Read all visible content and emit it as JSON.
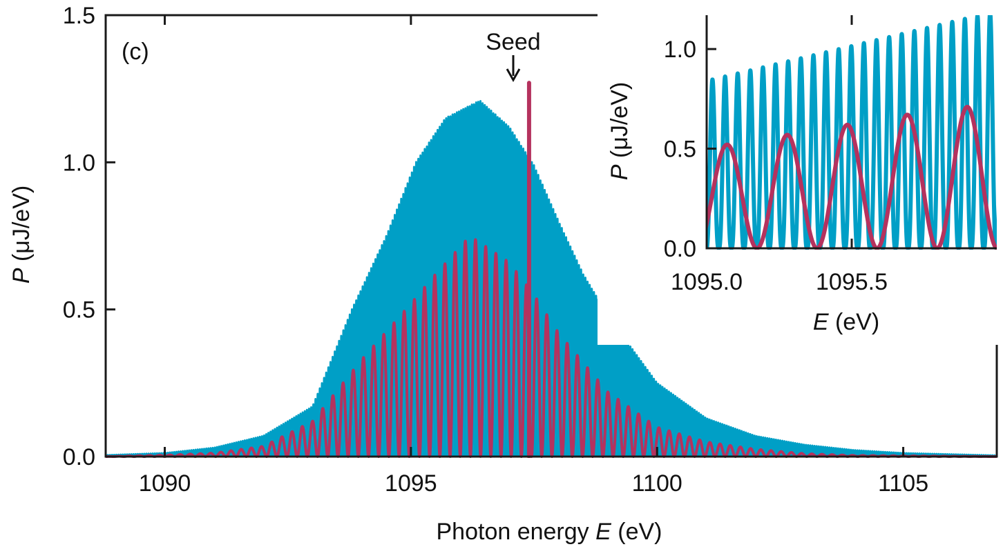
{
  "chart_data": [
    {
      "type": "line",
      "panel_label": "(c)",
      "xlabel_prefix": "Photon energy ",
      "xlabel_var": "E",
      "xlabel_unit": " (eV)",
      "ylabel_var": "P",
      "ylabel_unit": " (μJ/eV)",
      "xlim": [
        1088.8,
        1106.9
      ],
      "ylim": [
        0,
        1.5
      ],
      "xticks": [
        1090,
        1095,
        1100,
        1105
      ],
      "xtick_labels": [
        "1090",
        "1095",
        "1100",
        "1105"
      ],
      "yticks": [
        0,
        0.5,
        1.0,
        1.5
      ],
      "ytick_labels": [
        "0.0",
        "0.5",
        "1.0",
        "1.5"
      ],
      "grid": false,
      "annotation": {
        "text": "Seed",
        "x": 1097.4,
        "arrow": true
      },
      "series": [
        {
          "color": "#009fc6",
          "description_envelope_x": [
            1088.8,
            1090,
            1091,
            1092,
            1093,
            1093.8,
            1094.5,
            1095.1,
            1095.7,
            1096.4,
            1097,
            1097.5,
            1098,
            1098.5,
            1099,
            1100,
            1101,
            1102,
            1103,
            1104,
            1105,
            1106.9
          ],
          "envelope_y": [
            0.005,
            0.012,
            0.03,
            0.07,
            0.17,
            0.5,
            0.75,
            1.0,
            1.15,
            1.21,
            1.12,
            0.99,
            0.8,
            0.62,
            0.48,
            0.25,
            0.13,
            0.07,
            0.04,
            0.022,
            0.012,
            0.004
          ],
          "fringe_period_eV": 0.0435,
          "fringe_phase_eV": 1095.02
        },
        {
          "color": "#b5325e",
          "envelope_x": [
            1088.8,
            1090,
            1091,
            1092,
            1093,
            1094,
            1095,
            1095.5,
            1096.2,
            1097,
            1097.5,
            1098,
            1099,
            1100,
            1101,
            1102,
            1103,
            1104,
            1106.9
          ],
          "envelope_y": [
            0.0,
            0.005,
            0.012,
            0.035,
            0.12,
            0.33,
            0.52,
            0.62,
            0.75,
            0.66,
            0.55,
            0.42,
            0.22,
            0.1,
            0.05,
            0.025,
            0.01,
            0.004,
            0.0
          ],
          "fringe_period_eV": 0.207,
          "fringe_phase_eV": 1095.07,
          "seed_spike": {
            "x": 1097.4,
            "y": 1.27
          }
        }
      ]
    },
    {
      "type": "line",
      "inset": true,
      "xlabel_var": "E",
      "xlabel_unit": " (eV)",
      "ylabel_var": "P",
      "ylabel_unit": " (μJ/eV)",
      "xlim": [
        1095.0,
        1096.0
      ],
      "ylim": [
        0,
        1.17
      ],
      "xticks": [
        1095.0,
        1095.5
      ],
      "xtick_labels": [
        "1095.0",
        "1095.5"
      ],
      "yticks": [
        0,
        0.5,
        1.0
      ],
      "ytick_labels": [
        "0.0",
        "0.5",
        "1.0"
      ],
      "series_peaks": [
        {
          "color": "#009fc6",
          "peak_start": 0.84,
          "peak_end": 1.19
        },
        {
          "color": "#b5325e",
          "peak_x": [
            1095.07,
            1095.28,
            1095.485,
            1095.69,
            1095.9
          ],
          "peak_y": [
            0.52,
            0.57,
            0.62,
            0.67,
            0.71
          ]
        }
      ]
    }
  ]
}
